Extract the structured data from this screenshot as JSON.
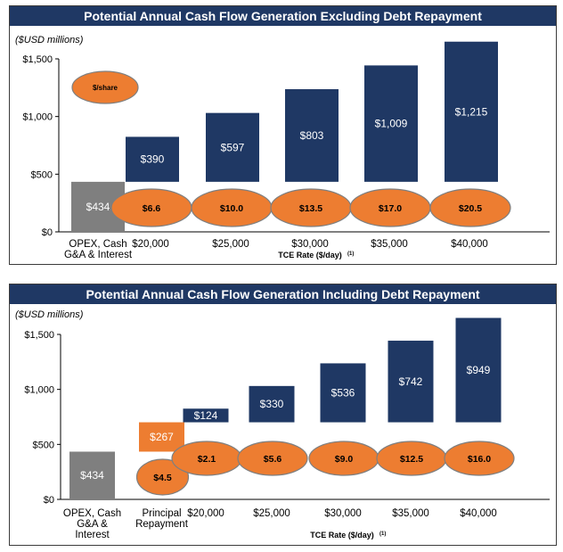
{
  "chart_data": [
    {
      "type": "bar",
      "title": "Potential Annual Cash Flow Generation Excluding Debt Repayment",
      "unit_label": "($USD millions)",
      "xlabel": "TCE Rate ($/day)",
      "xlabel_superscript": "(1)",
      "ylim": [
        0,
        1500
      ],
      "yticks": [
        "$0",
        "$500",
        "$1,000",
        "$1,500"
      ],
      "ytick_values": [
        0,
        500,
        1000,
        1500
      ],
      "legend_oval": "$/share",
      "legend_placement": "top-left",
      "colors": {
        "base": "#7f7f7f",
        "bar": "#1f3864",
        "oval": "#ed7d31",
        "oval_border": "#7f7f7f"
      },
      "base_bar": {
        "category": "OPEX, Cash G&A & Interest",
        "category_lines": [
          "OPEX, Cash",
          "G&A & Interest"
        ],
        "value": 434,
        "label": "$434"
      },
      "categories": [
        "$20,000",
        "$25,000",
        "$30,000",
        "$35,000",
        "$40,000"
      ],
      "values": [
        390,
        597,
        803,
        1009,
        1215
      ],
      "value_labels": [
        "$390",
        "$597",
        "$803",
        "$1,009",
        "$1,215"
      ],
      "per_share": [
        "$6.6",
        "$10.0",
        "$13.5",
        "$17.0",
        "$20.5"
      ]
    },
    {
      "type": "bar",
      "title": "Potential Annual Cash Flow Generation Including Debt Repayment",
      "unit_label": "($USD millions)",
      "xlabel": "TCE Rate ($/day)",
      "xlabel_superscript": "(1)",
      "ylim": [
        0,
        1500
      ],
      "yticks": [
        "$0",
        "$500",
        "$1,000",
        "$1,500"
      ],
      "ytick_values": [
        0,
        500,
        1000,
        1500
      ],
      "colors": {
        "base": "#7f7f7f",
        "bar": "#1f3864",
        "oval": "#ed7d31",
        "oval_border": "#7f7f7f",
        "repayment": "#ed7d31"
      },
      "base_bar": {
        "category": "OPEX, Cash G&A & Interest",
        "category_lines": [
          "OPEX, Cash",
          "G&A &",
          "Interest"
        ],
        "value": 434,
        "label": "$434"
      },
      "repayment_bar": {
        "category": "Principal Repayment",
        "category_lines": [
          "Principal",
          "Repayment"
        ],
        "value": 267,
        "label": "$267",
        "per_share": "$4.5"
      },
      "categories": [
        "$20,000",
        "$25,000",
        "$30,000",
        "$35,000",
        "$40,000"
      ],
      "values": [
        124,
        330,
        536,
        742,
        949
      ],
      "value_labels": [
        "$124",
        "$330",
        "$536",
        "$742",
        "$949"
      ],
      "per_share": [
        "$2.1",
        "$5.6",
        "$9.0",
        "$12.5",
        "$16.0"
      ]
    }
  ]
}
